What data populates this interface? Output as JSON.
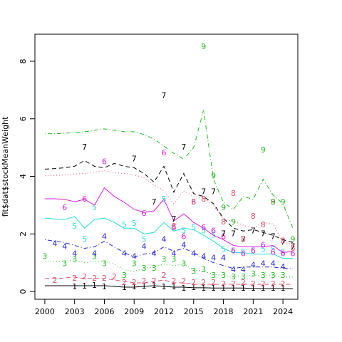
{
  "chart_data": {
    "type": "line",
    "ylabel": "fit$dat$stockMeanWeight",
    "x": [
      2000,
      2001,
      2002,
      2003,
      2004,
      2005,
      2006,
      2007,
      2008,
      2009,
      2010,
      2011,
      2012,
      2013,
      2014,
      2015,
      2016,
      2017,
      2018,
      2019,
      2020,
      2021,
      2022,
      2023,
      2024,
      2025
    ],
    "xlim": [
      1999,
      2025.5
    ],
    "xticks": [
      2000,
      2003,
      2006,
      2009,
      2012,
      2015,
      2018,
      2021,
      2024
    ],
    "ylim": [
      -0.27,
      8.94
    ],
    "yticks": [
      0,
      2,
      4,
      6,
      8
    ],
    "series": [
      {
        "name": "1",
        "color": "#000000",
        "dash": "none",
        "values": [
          0.2,
          0.2,
          0.2,
          0.2,
          0.2,
          0.2,
          0.2,
          0.18,
          0.15,
          0.15,
          0.18,
          0.2,
          0.18,
          0.15,
          0.15,
          0.13,
          0.13,
          0.12,
          0.12,
          0.12,
          0.12,
          0.1,
          0.1,
          0.1,
          0.1,
          0.1
        ],
        "observed": [
          null,
          null,
          null,
          0.15,
          0.18,
          0.2,
          0.15,
          null,
          0.12,
          0.15,
          0.18,
          0.2,
          0.15,
          0.15,
          0.1,
          0.12,
          0.1,
          0.1,
          0.1,
          0.1,
          0.1,
          0.1,
          0.1,
          0.1,
          0.1,
          null
        ]
      },
      {
        "name": "2",
        "color": "#df536b",
        "dash": "6,4",
        "values": [
          0.45,
          0.45,
          0.47,
          0.5,
          0.45,
          0.45,
          0.45,
          0.4,
          0.35,
          0.3,
          0.3,
          0.35,
          0.4,
          0.3,
          0.3,
          0.25,
          0.25,
          0.25,
          0.25,
          0.25,
          0.25,
          0.25,
          0.25,
          0.25,
          0.25,
          0.25
        ],
        "observed": [
          null,
          0.37,
          null,
          0.45,
          0.5,
          0.45,
          0.45,
          0.5,
          0.3,
          0.3,
          0.35,
          0.35,
          0.55,
          0.35,
          0.35,
          0.3,
          0.3,
          0.3,
          0.25,
          0.25,
          0.3,
          0.25,
          0.25,
          0.25,
          0.25,
          null
        ]
      },
      {
        "name": "3",
        "color": "#22bb22",
        "dash": "1,3",
        "values": [
          1.05,
          1.05,
          1.05,
          1.1,
          1.0,
          1.05,
          1.05,
          0.95,
          0.75,
          0.7,
          0.8,
          0.85,
          0.95,
          0.9,
          0.95,
          0.75,
          0.7,
          0.6,
          0.55,
          0.5,
          0.55,
          0.55,
          0.55,
          0.55,
          0.5,
          0.5
        ],
        "observed": [
          1.2,
          null,
          0.95,
          1.1,
          null,
          1.2,
          0.95,
          null,
          0.55,
          0.95,
          0.8,
          0.8,
          1.1,
          1.1,
          0.95,
          0.7,
          0.75,
          0.55,
          0.55,
          0.5,
          0.5,
          0.6,
          0.55,
          0.55,
          0.55,
          null
        ]
      },
      {
        "name": "4",
        "color": "#2222dd",
        "dash": "1,3,6,3",
        "values": [
          1.8,
          1.75,
          1.7,
          1.6,
          1.5,
          1.55,
          1.75,
          1.55,
          1.35,
          1.2,
          1.3,
          1.35,
          1.55,
          1.4,
          1.5,
          1.35,
          1.15,
          1.0,
          0.9,
          0.8,
          0.85,
          0.85,
          0.85,
          0.85,
          0.8,
          0.8
        ],
        "observed": [
          null,
          1.65,
          1.55,
          1.3,
          null,
          1.3,
          1.9,
          null,
          1.3,
          1.2,
          1.55,
          1.3,
          1.8,
          1.3,
          1.6,
          1.3,
          1.2,
          1.15,
          1.15,
          0.75,
          0.75,
          0.9,
          0.95,
          0.95,
          0.85,
          null
        ]
      },
      {
        "name": "5",
        "color": "#22dddd",
        "dash": "none",
        "values": [
          2.55,
          2.52,
          2.5,
          2.6,
          2.2,
          2.5,
          2.55,
          2.4,
          2.2,
          2.2,
          2.0,
          2.05,
          2.4,
          2.1,
          2.2,
          2.15,
          1.95,
          1.75,
          1.5,
          1.35,
          1.35,
          1.3,
          1.3,
          1.3,
          1.15,
          1.15
        ],
        "observed": [
          null,
          null,
          null,
          2.25,
          1.8,
          2.9,
          null,
          null,
          2.3,
          2.35,
          1.8,
          null,
          3.2,
          2.2,
          2.1,
          2.2,
          2.1,
          1.95,
          1.45,
          1.4,
          1.35,
          1.4,
          1.45,
          1.45,
          1.35,
          null
        ]
      },
      {
        "name": "6",
        "color": "#dd22dd",
        "dash": "none",
        "values": [
          3.22,
          3.22,
          3.2,
          3.12,
          3.2,
          3.0,
          3.6,
          3.3,
          3.1,
          2.85,
          2.75,
          2.8,
          3.2,
          2.45,
          2.7,
          2.4,
          2.2,
          1.95,
          1.8,
          1.6,
          1.55,
          1.55,
          1.55,
          1.6,
          1.35,
          1.4
        ],
        "observed": [
          null,
          null,
          2.9,
          null,
          3.2,
          null,
          4.5,
          null,
          null,
          null,
          2.7,
          null,
          4.8,
          2.2,
          1.9,
          3.1,
          2.2,
          2.1,
          1.9,
          1.4,
          1.3,
          1.4,
          1.6,
          1.35,
          1.3,
          1.3
        ]
      },
      {
        "name": "7",
        "color": "#000000",
        "dash": "6,4",
        "values": [
          4.25,
          4.27,
          4.3,
          4.35,
          4.55,
          4.35,
          4.3,
          4.45,
          4.35,
          4.3,
          4.1,
          3.8,
          4.35,
          3.45,
          4.1,
          3.4,
          3.3,
          3.05,
          2.55,
          2.2,
          2.1,
          2.15,
          2.05,
          1.95,
          1.8,
          1.7
        ],
        "observed": [
          null,
          null,
          null,
          null,
          5.0,
          null,
          null,
          null,
          null,
          4.6,
          null,
          3.1,
          6.8,
          2.5,
          5.0,
          null,
          3.45,
          3.45,
          2.0,
          2.0,
          1.8,
          2.1,
          2.0,
          1.9,
          1.7,
          1.55
        ]
      },
      {
        "name": "8",
        "color": "#df536b",
        "dash": "1,3",
        "values": [
          4.02,
          4.03,
          4.05,
          4.08,
          4.1,
          4.15,
          4.2,
          4.12,
          4.1,
          4.05,
          3.95,
          3.7,
          3.5,
          3.05,
          3.5,
          3.3,
          3.25,
          3.0,
          2.5,
          2.45,
          2.3,
          2.2,
          2.4,
          2.35,
          1.7,
          1.65
        ],
        "observed": [
          null,
          null,
          null,
          null,
          null,
          null,
          null,
          null,
          null,
          null,
          null,
          null,
          null,
          2.25,
          null,
          3.1,
          3.2,
          null,
          2.4,
          3.4,
          1.8,
          2.6,
          2.3,
          3.1,
          1.75,
          1.5
        ]
      },
      {
        "name": "9",
        "color": "#22bb22",
        "dash": "1,3,6,3",
        "values": [
          5.48,
          5.48,
          5.5,
          5.52,
          5.55,
          5.6,
          5.65,
          5.6,
          5.55,
          5.55,
          5.45,
          5.3,
          5.05,
          4.8,
          4.6,
          5.0,
          6.3,
          3.9,
          3.1,
          2.85,
          3.3,
          3.2,
          3.9,
          3.35,
          3.05,
          2.2
        ],
        "observed": [
          null,
          null,
          null,
          null,
          null,
          null,
          null,
          null,
          null,
          null,
          null,
          null,
          null,
          null,
          null,
          null,
          8.5,
          4.0,
          2.9,
          2.4,
          null,
          null,
          4.9,
          3.1,
          3.1,
          1.8
        ]
      }
    ]
  }
}
